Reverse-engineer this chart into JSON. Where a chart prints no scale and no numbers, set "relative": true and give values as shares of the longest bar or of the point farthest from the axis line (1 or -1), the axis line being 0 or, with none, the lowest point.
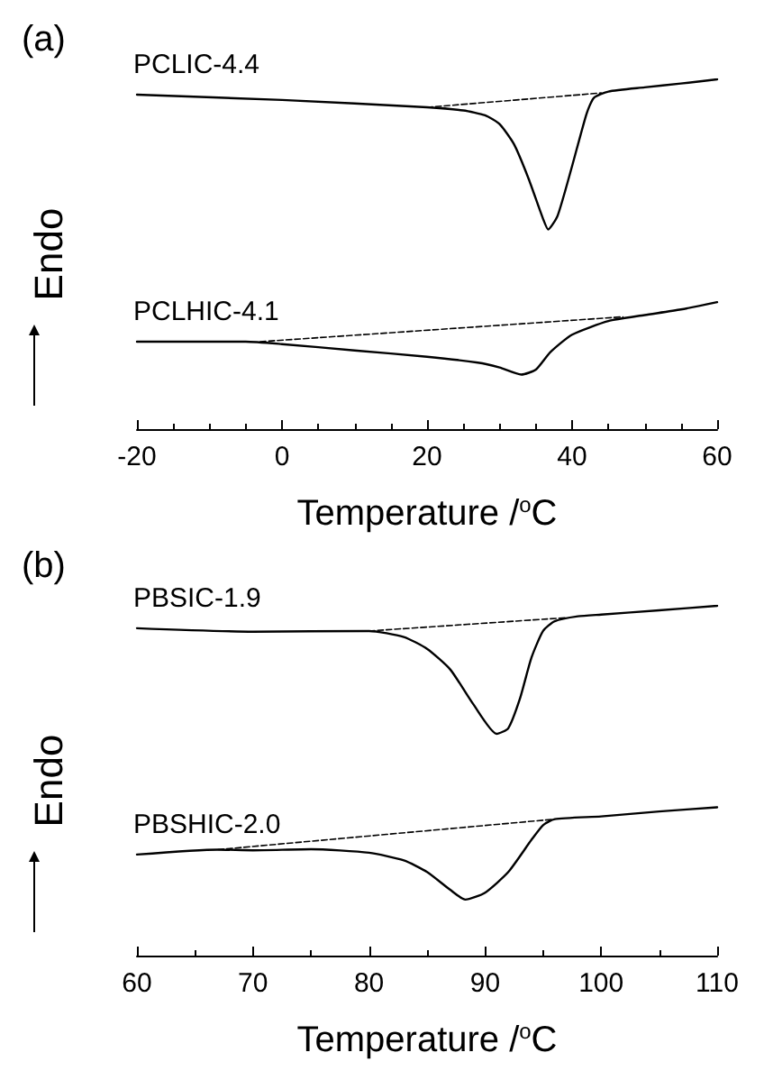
{
  "chart_data": [
    {
      "type": "line",
      "relative": true,
      "annotations": [
        "(a)"
      ],
      "xlabel": "Temperature /$^{o}$C",
      "ylabel": "Endo",
      "xlim": [
        -20,
        60
      ],
      "xticks": [
        -20,
        0,
        20,
        40,
        60
      ],
      "grid": false,
      "marker": "none",
      "tick_labels": "x",
      "series": [
        {
          "name": "PCLIC-4.4",
          "color": "#000000",
          "line_style": "solid",
          "x": [
            -20,
            0,
            20,
            25,
            28,
            30,
            32,
            34,
            36,
            36.7,
            38,
            40,
            42,
            43,
            45,
            50,
            55,
            60
          ],
          "values": [
            0.956,
            0.941,
            0.92,
            0.911,
            0.897,
            0.872,
            0.814,
            0.716,
            0.601,
            0.571,
            0.61,
            0.752,
            0.902,
            0.947,
            0.965,
            0.977,
            0.988,
            1
          ]
        },
        {
          "color": "#000000",
          "line_style": "dashed",
          "x": [
            20,
            44
          ],
          "values": [
            0.92,
            0.961
          ]
        },
        {
          "name": "PCLHIC-4.1",
          "color": "#000000",
          "line_style": "solid",
          "x": [
            -20,
            -5,
            0,
            10,
            20,
            27,
            30,
            33,
            35,
            37,
            40,
            45,
            50,
            55,
            60
          ],
          "values": [
            0.25,
            0.25,
            0.243,
            0.225,
            0.207,
            0.19,
            0.176,
            0.156,
            0.17,
            0.22,
            0.27,
            0.309,
            0.326,
            0.342,
            0.363
          ]
        },
        {
          "color": "#000000",
          "line_style": "dashed",
          "x": [
            -3,
            47
          ],
          "values": [
            0.25,
            0.321
          ]
        }
      ]
    },
    {
      "type": "line",
      "relative": true,
      "annotations": [
        "(b)"
      ],
      "xlabel": "Temperature /$^{o}$C",
      "ylabel": "Endo",
      "xlim": [
        60,
        110
      ],
      "xticks": [
        60,
        70,
        80,
        90,
        100,
        110
      ],
      "grid": false,
      "marker": "none",
      "tick_labels": "x",
      "series": [
        {
          "name": "PBSIC-1.9",
          "color": "#000000",
          "line_style": "solid",
          "x": [
            60,
            70,
            80,
            83,
            85,
            87,
            89,
            91,
            92,
            93,
            94,
            95,
            96,
            98,
            100,
            105,
            110
          ],
          "values": [
            0.936,
            0.926,
            0.928,
            0.911,
            0.877,
            0.818,
            0.718,
            0.634,
            0.65,
            0.734,
            0.852,
            0.928,
            0.956,
            0.97,
            0.975,
            0.987,
            1
          ]
        },
        {
          "color": "#000000",
          "line_style": "dashed",
          "x": [
            80,
            97
          ],
          "values": [
            0.928,
            0.966
          ]
        },
        {
          "name": "PBSHIC-2.0",
          "color": "#000000",
          "line_style": "solid",
          "x": [
            60,
            67,
            70,
            75,
            80,
            83,
            85,
            87,
            88.3,
            90,
            92,
            94,
            95,
            96,
            100,
            105,
            110
          ],
          "values": [
            0.289,
            0.303,
            0.301,
            0.304,
            0.294,
            0.272,
            0.239,
            0.188,
            0.16,
            0.18,
            0.239,
            0.331,
            0.373,
            0.39,
            0.398,
            0.412,
            0.424
          ]
        },
        {
          "color": "#000000",
          "line_style": "dashed",
          "x": [
            67,
            96
          ],
          "values": [
            0.303,
            0.39
          ]
        }
      ]
    }
  ]
}
